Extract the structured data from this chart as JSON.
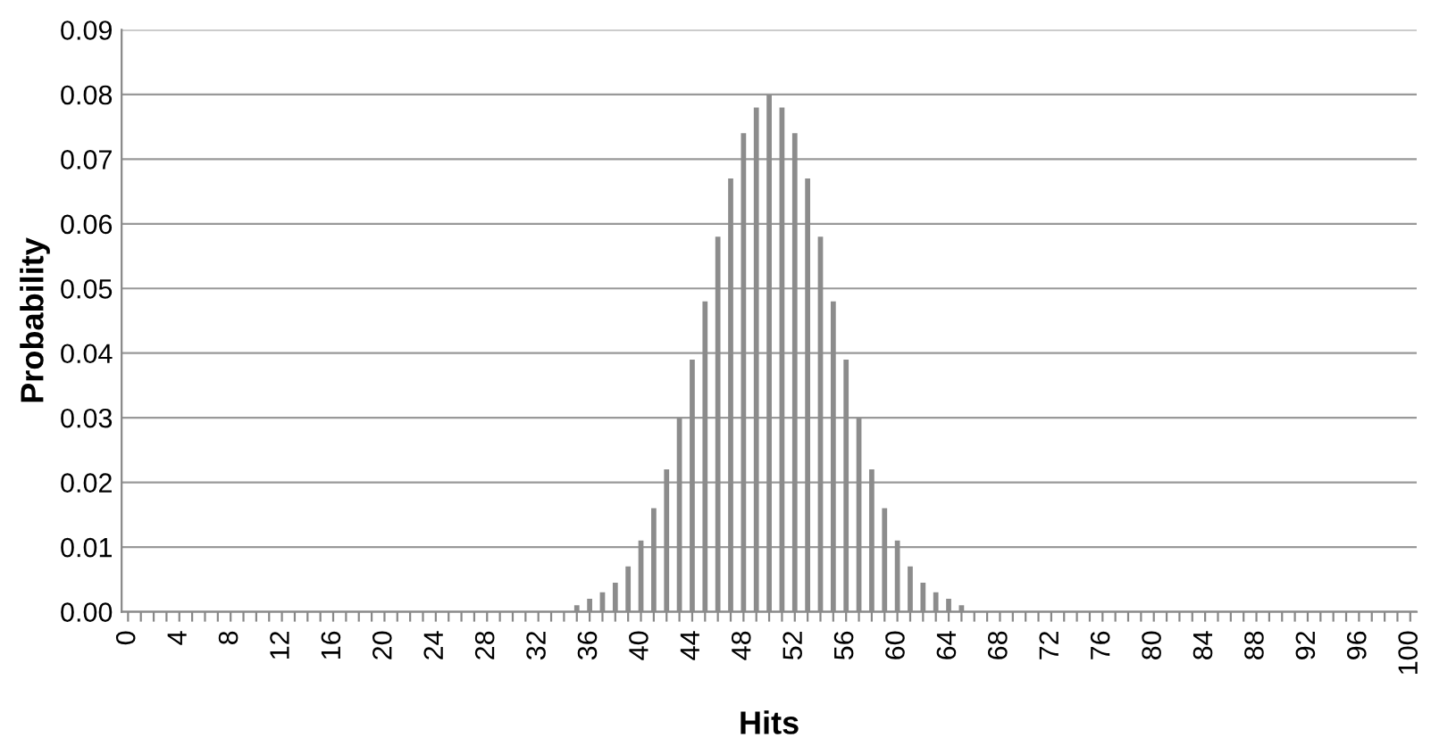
{
  "chart_data": {
    "type": "bar",
    "xlabel": "Hits",
    "ylabel": "Probability",
    "categories": [
      "0",
      null,
      null,
      null,
      "4",
      null,
      null,
      null,
      "8",
      null,
      null,
      null,
      "12",
      null,
      null,
      null,
      "16",
      null,
      null,
      null,
      "20",
      null,
      null,
      null,
      "24",
      null,
      null,
      null,
      "28",
      null,
      null,
      null,
      "32",
      null,
      null,
      null,
      "36",
      null,
      null,
      null,
      "40",
      null,
      null,
      null,
      "44",
      null,
      null,
      null,
      "48",
      null,
      null,
      null,
      "52",
      null,
      null,
      null,
      "56",
      null,
      null,
      null,
      "60",
      null,
      null,
      null,
      "64",
      null,
      null,
      null,
      "68",
      null,
      null,
      null,
      "72",
      null,
      null,
      null,
      "76",
      null,
      null,
      null,
      "80",
      null,
      null,
      null,
      "84",
      null,
      null,
      null,
      "88",
      null,
      null,
      null,
      "92",
      null,
      null,
      null,
      "96",
      null,
      null,
      null,
      "100"
    ],
    "values": [
      0,
      0,
      0,
      0,
      0,
      0,
      0,
      0,
      0,
      0,
      0,
      0,
      0,
      0,
      0,
      0,
      0,
      0,
      0,
      0,
      0,
      0,
      0,
      0,
      0,
      0,
      0,
      0,
      0,
      0,
      0,
      0,
      0,
      0,
      null,
      0.001,
      0.002,
      0.003,
      0.0045,
      0.007,
      0.011,
      0.016,
      0.022,
      0.03,
      0.039,
      0.048,
      0.058,
      0.067,
      0.074,
      0.078,
      0.08,
      0.078,
      0.074,
      0.067,
      0.058,
      0.048,
      0.039,
      0.03,
      0.022,
      0.016,
      0.011,
      0.007,
      0.0045,
      0.003,
      0.002,
      0.001,
      null,
      0,
      0,
      0,
      0,
      0,
      0,
      0,
      0,
      0,
      0,
      0,
      0,
      0,
      0,
      0,
      0,
      0,
      0,
      0,
      0,
      0,
      0,
      0,
      0,
      0,
      0,
      0,
      0,
      0,
      0,
      0,
      0,
      0,
      0
    ],
    "color": "#8c8c8c",
    "ylim": [
      0,
      0.09
    ],
    "yticks": [
      {
        "value": 0,
        "label": "0.00"
      },
      {
        "value": 0.01,
        "label": "0.01"
      },
      {
        "value": 0.02,
        "label": "0.02"
      },
      {
        "value": 0.03,
        "label": "0.03"
      },
      {
        "value": 0.04,
        "label": "0.04"
      },
      {
        "value": 0.05,
        "label": "0.05"
      },
      {
        "value": 0.06,
        "label": "0.06"
      },
      {
        "value": 0.07,
        "label": "0.07"
      },
      {
        "value": 0.08,
        "label": "0.08"
      },
      {
        "value": 0.09,
        "label": "0.09"
      }
    ],
    "grid": "y"
  }
}
